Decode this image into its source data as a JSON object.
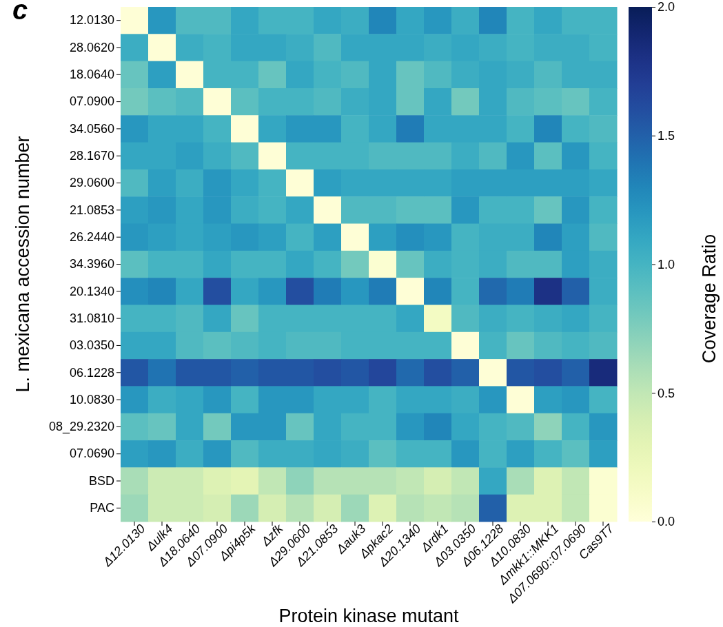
{
  "chart_data": {
    "type": "heatmap",
    "xlabel": "Protein kinase mutant",
    "ylabel": "L. mexicana accession number",
    "clabel": "Coverage Ratio",
    "annotations": [
      "c"
    ],
    "categories": [
      "Δ12.0130",
      "Δulk4",
      "Δ18.0640",
      "Δ07.0900",
      "Δpi4p5k",
      "Δzfk",
      "Δ29.0600",
      "Δ21.0853",
      "Δauk3",
      "Δpkac2",
      "Δ20.1340",
      "Δrdk1",
      "Δ03.0350",
      "Δ06.1228",
      "Δ10.0830",
      "Δmkk1::MKK1",
      "Δ07.0690::07.0690",
      "Cas9T7"
    ],
    "y_categories": [
      "12.0130",
      "28.0620",
      "18.0640",
      "07.0900",
      "34.0560",
      "28.1670",
      "29.0600",
      "21.0853",
      "26.2440",
      "34.3960",
      "20.1340",
      "31.0810",
      "03.0350",
      "06.1228",
      "10.0830",
      "08_29.2320",
      "07.0690",
      "BSD",
      "PAC"
    ],
    "cells": [
      [
        0.02,
        1.2,
        0.95,
        0.95,
        1.1,
        1.0,
        1.0,
        1.1,
        1.05,
        1.3,
        1.1,
        1.2,
        1.05,
        1.3,
        1.0,
        1.1,
        1.0,
        1.0
      ],
      [
        1.05,
        0.02,
        1.05,
        1.0,
        1.1,
        1.1,
        1.05,
        0.95,
        1.1,
        1.1,
        1.1,
        1.05,
        1.1,
        1.05,
        1.0,
        1.05,
        1.05,
        1.0
      ],
      [
        0.85,
        1.15,
        0.02,
        1.0,
        1.0,
        0.85,
        1.1,
        1.0,
        0.95,
        1.1,
        0.85,
        0.95,
        1.05,
        1.1,
        1.05,
        0.95,
        1.05,
        1.05
      ],
      [
        0.8,
        0.9,
        0.95,
        0.02,
        0.9,
        1.0,
        1.0,
        0.95,
        1.05,
        1.1,
        0.85,
        1.1,
        0.8,
        1.1,
        0.95,
        0.9,
        0.85,
        1.0
      ],
      [
        1.2,
        1.1,
        1.1,
        1.0,
        0.02,
        1.1,
        1.2,
        1.2,
        1.0,
        1.1,
        1.35,
        1.1,
        1.1,
        1.1,
        1.0,
        1.3,
        1.0,
        0.95
      ],
      [
        1.1,
        1.1,
        1.15,
        1.05,
        0.95,
        0.02,
        1.0,
        1.0,
        1.0,
        0.95,
        0.95,
        0.95,
        1.05,
        0.95,
        1.2,
        0.9,
        1.2,
        1.0
      ],
      [
        0.95,
        1.15,
        1.05,
        1.2,
        1.1,
        1.0,
        0.02,
        1.15,
        1.1,
        1.1,
        1.1,
        1.1,
        1.15,
        1.15,
        1.15,
        1.15,
        1.15,
        1.1
      ],
      [
        1.15,
        1.2,
        1.1,
        1.2,
        1.05,
        1.0,
        1.1,
        0.02,
        0.95,
        0.95,
        0.9,
        0.9,
        1.2,
        1.0,
        1.0,
        0.85,
        1.2,
        1.0
      ],
      [
        1.2,
        1.15,
        1.1,
        1.15,
        1.2,
        1.15,
        1.0,
        1.15,
        0.02,
        1.15,
        1.25,
        1.2,
        1.0,
        1.05,
        1.05,
        1.3,
        1.15,
        0.95
      ],
      [
        0.9,
        1.0,
        1.0,
        1.1,
        1.0,
        1.0,
        1.1,
        1.0,
        0.8,
        0.05,
        0.85,
        1.05,
        1.0,
        1.05,
        0.95,
        0.95,
        1.15,
        1.05
      ],
      [
        1.25,
        1.3,
        1.1,
        1.6,
        1.1,
        1.2,
        1.6,
        1.35,
        1.2,
        1.35,
        0.02,
        1.3,
        1.0,
        1.45,
        1.35,
        1.8,
        1.5,
        1.05
      ],
      [
        1.0,
        1.0,
        0.95,
        1.1,
        0.85,
        1.0,
        1.0,
        1.0,
        1.0,
        1.0,
        1.1,
        0.15,
        0.95,
        1.05,
        1.0,
        1.05,
        1.1,
        1.0
      ],
      [
        1.1,
        1.1,
        0.95,
        0.9,
        0.95,
        1.0,
        0.95,
        0.95,
        1.0,
        1.0,
        1.0,
        1.0,
        0.02,
        1.0,
        0.85,
        0.95,
        1.0,
        0.95
      ],
      [
        1.55,
        1.4,
        1.55,
        1.55,
        1.5,
        1.55,
        1.55,
        1.6,
        1.55,
        1.65,
        1.45,
        1.6,
        1.5,
        0.02,
        1.55,
        1.6,
        1.5,
        1.85
      ],
      [
        1.2,
        1.05,
        1.1,
        1.2,
        1.0,
        1.2,
        1.2,
        1.1,
        1.1,
        1.0,
        1.1,
        1.1,
        1.05,
        1.2,
        0.02,
        1.15,
        1.2,
        1.0
      ],
      [
        0.9,
        0.85,
        1.1,
        0.8,
        1.2,
        1.2,
        0.85,
        1.1,
        1.0,
        1.0,
        1.2,
        1.3,
        1.1,
        1.0,
        0.95,
        0.7,
        1.0,
        1.2
      ],
      [
        1.15,
        1.2,
        1.05,
        1.2,
        0.95,
        1.05,
        1.05,
        1.1,
        1.05,
        0.9,
        1.0,
        1.0,
        1.2,
        1.0,
        1.15,
        1.0,
        0.9,
        1.15
      ],
      [
        0.6,
        0.45,
        0.45,
        0.35,
        0.3,
        0.5,
        0.7,
        0.55,
        0.55,
        0.55,
        0.5,
        0.4,
        0.5,
        1.1,
        0.6,
        0.35,
        0.5,
        0.05
      ],
      [
        0.65,
        0.45,
        0.45,
        0.4,
        0.65,
        0.4,
        0.55,
        0.4,
        0.65,
        0.35,
        0.55,
        0.5,
        0.55,
        1.5,
        0.35,
        0.35,
        0.5,
        0.05
      ]
    ],
    "clim": [
      0,
      2
    ],
    "cticks": [
      {
        "value": 0,
        "label": "0.0"
      },
      {
        "value": 0.5,
        "label": "0.5"
      },
      {
        "value": 1,
        "label": "1.0"
      },
      {
        "value": 1.5,
        "label": "1.5"
      },
      {
        "value": 2,
        "label": "2.0"
      }
    ]
  }
}
